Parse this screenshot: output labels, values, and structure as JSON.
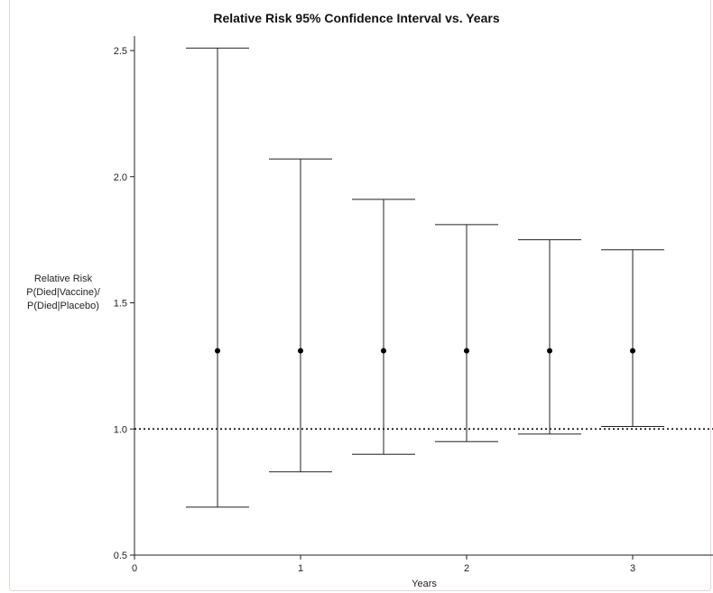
{
  "chart_data": {
    "type": "errorbar",
    "title": "Relative Risk 95% Confidence Interval vs. Years",
    "xlabel": "Years",
    "ylabel_lines": [
      "Relative Risk",
      "P(Died|Vaccine)/",
      "P(Died|Placebo)"
    ],
    "xlim": [
      0,
      3.5
    ],
    "ylim": [
      0.5,
      2.6
    ],
    "x_ticks": [
      "0",
      "1",
      "2",
      "3"
    ],
    "y_ticks": [
      "0.5",
      "1.0",
      "1.5",
      "2.0",
      "2.5"
    ],
    "reference_line": 1.0,
    "points": [
      {
        "x": 0.5,
        "y": 1.31,
        "lower": 0.69,
        "upper": 2.51
      },
      {
        "x": 1.0,
        "y": 1.31,
        "lower": 0.83,
        "upper": 2.07
      },
      {
        "x": 1.5,
        "y": 1.31,
        "lower": 0.9,
        "upper": 1.91
      },
      {
        "x": 2.0,
        "y": 1.31,
        "lower": 0.95,
        "upper": 1.81
      },
      {
        "x": 2.5,
        "y": 1.31,
        "lower": 0.98,
        "upper": 1.75
      },
      {
        "x": 3.0,
        "y": 1.31,
        "lower": 1.01,
        "upper": 1.71
      }
    ]
  }
}
